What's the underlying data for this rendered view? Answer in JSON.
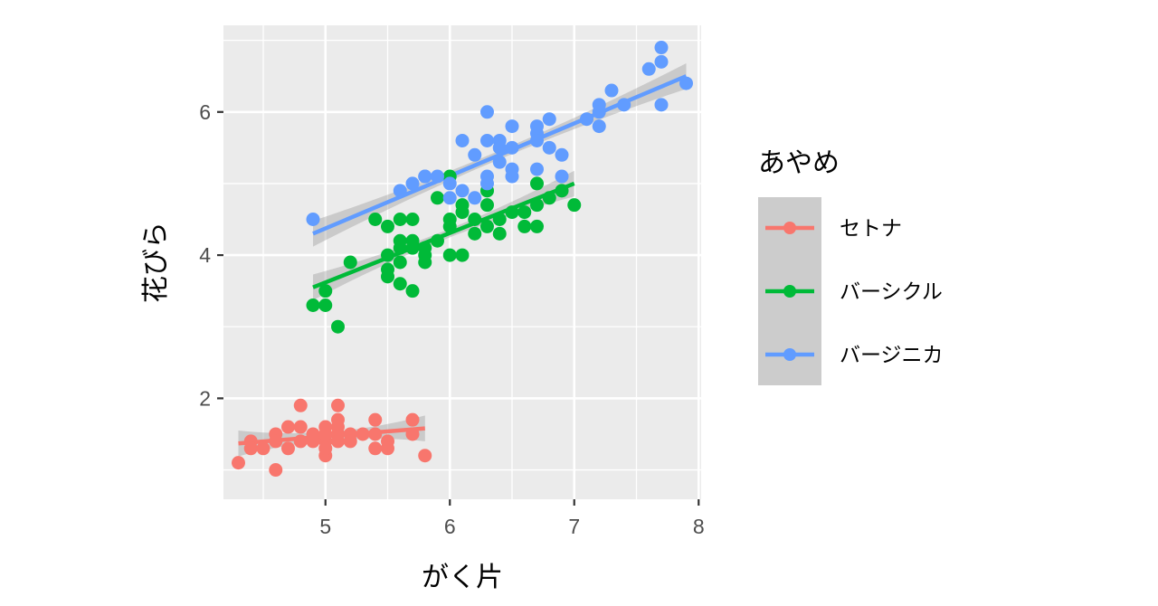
{
  "chart_data": {
    "type": "scatter",
    "xlabel": "がく片",
    "ylabel": "花びら",
    "xlim": [
      4.18,
      8.02
    ],
    "ylim": [
      0.59,
      7.21
    ],
    "xticks": [
      5,
      6,
      7,
      8
    ],
    "yticks": [
      2,
      4,
      6
    ],
    "grid": true,
    "legend": {
      "title": "あやめ",
      "position": "right"
    },
    "colors": {
      "panel": "#ebebeb",
      "grid": "#ffffff",
      "band": "#999999",
      "legend_key": "#cccccc"
    },
    "series": [
      {
        "name": "セトナ",
        "color": "#f8766d",
        "fit": {
          "x": [
            4.3,
            5.8
          ],
          "y": [
            1.37,
            1.58
          ]
        },
        "points": [
          [
            4.3,
            1.1
          ],
          [
            4.4,
            1.4
          ],
          [
            4.4,
            1.3
          ],
          [
            4.5,
            1.3
          ],
          [
            4.6,
            1.0
          ],
          [
            4.6,
            1.5
          ],
          [
            4.6,
            1.4
          ],
          [
            4.7,
            1.3
          ],
          [
            4.7,
            1.6
          ],
          [
            4.8,
            1.6
          ],
          [
            4.8,
            1.4
          ],
          [
            4.8,
            1.9
          ],
          [
            4.9,
            1.4
          ],
          [
            4.9,
            1.5
          ],
          [
            5.0,
            1.6
          ],
          [
            5.0,
            1.4
          ],
          [
            5.0,
            1.2
          ],
          [
            5.0,
            1.3
          ],
          [
            5.0,
            1.5
          ],
          [
            5.1,
            1.5
          ],
          [
            5.1,
            1.4
          ],
          [
            5.1,
            1.7
          ],
          [
            5.1,
            1.9
          ],
          [
            5.1,
            1.6
          ],
          [
            5.2,
            1.5
          ],
          [
            5.2,
            1.4
          ],
          [
            5.3,
            1.5
          ],
          [
            5.4,
            1.7
          ],
          [
            5.4,
            1.5
          ],
          [
            5.4,
            1.3
          ],
          [
            5.5,
            1.4
          ],
          [
            5.5,
            1.3
          ],
          [
            5.7,
            1.7
          ],
          [
            5.7,
            1.5
          ],
          [
            5.8,
            1.2
          ]
        ]
      },
      {
        "name": "バーシクル",
        "color": "#00ba38",
        "fit": {
          "x": [
            4.9,
            7.0
          ],
          "y": [
            3.55,
            5.0
          ]
        },
        "points": [
          [
            4.9,
            3.3
          ],
          [
            5.0,
            3.5
          ],
          [
            5.0,
            3.3
          ],
          [
            5.1,
            3.0
          ],
          [
            5.2,
            3.9
          ],
          [
            5.4,
            4.5
          ],
          [
            5.5,
            4.0
          ],
          [
            5.5,
            3.8
          ],
          [
            5.5,
            3.7
          ],
          [
            5.5,
            4.4
          ],
          [
            5.6,
            4.5
          ],
          [
            5.6,
            3.6
          ],
          [
            5.6,
            4.2
          ],
          [
            5.6,
            3.9
          ],
          [
            5.6,
            4.1
          ],
          [
            5.7,
            4.5
          ],
          [
            5.7,
            3.5
          ],
          [
            5.7,
            4.2
          ],
          [
            5.7,
            4.1
          ],
          [
            5.8,
            4.1
          ],
          [
            5.8,
            4.0
          ],
          [
            5.8,
            3.9
          ],
          [
            5.9,
            4.8
          ],
          [
            5.9,
            4.2
          ],
          [
            6.0,
            4.0
          ],
          [
            6.0,
            4.5
          ],
          [
            6.0,
            5.1
          ],
          [
            6.0,
            4.4
          ],
          [
            6.1,
            4.7
          ],
          [
            6.1,
            4.0
          ],
          [
            6.1,
            4.6
          ],
          [
            6.2,
            4.3
          ],
          [
            6.2,
            4.5
          ],
          [
            6.3,
            4.7
          ],
          [
            6.3,
            4.9
          ],
          [
            6.3,
            4.4
          ],
          [
            6.4,
            4.5
          ],
          [
            6.4,
            4.3
          ],
          [
            6.5,
            4.6
          ],
          [
            6.6,
            4.6
          ],
          [
            6.6,
            4.4
          ],
          [
            6.7,
            4.4
          ],
          [
            6.7,
            4.7
          ],
          [
            6.7,
            5.0
          ],
          [
            6.8,
            4.8
          ],
          [
            6.9,
            4.9
          ],
          [
            7.0,
            4.7
          ]
        ]
      },
      {
        "name": "バージニカ",
        "color": "#619cff",
        "fit": {
          "x": [
            4.9,
            7.9
          ],
          "y": [
            4.3,
            6.5
          ]
        },
        "points": [
          [
            4.9,
            4.5
          ],
          [
            5.6,
            4.9
          ],
          [
            5.7,
            5.0
          ],
          [
            5.8,
            5.1
          ],
          [
            5.8,
            5.1
          ],
          [
            5.9,
            5.1
          ],
          [
            6.0,
            4.8
          ],
          [
            6.0,
            5.0
          ],
          [
            6.1,
            5.6
          ],
          [
            6.1,
            4.9
          ],
          [
            6.2,
            4.8
          ],
          [
            6.2,
            5.4
          ],
          [
            6.3,
            6.0
          ],
          [
            6.3,
            5.6
          ],
          [
            6.3,
            5.1
          ],
          [
            6.3,
            5.0
          ],
          [
            6.4,
            5.3
          ],
          [
            6.4,
            5.6
          ],
          [
            6.4,
            5.5
          ],
          [
            6.5,
            5.8
          ],
          [
            6.5,
            5.5
          ],
          [
            6.5,
            5.2
          ],
          [
            6.5,
            5.1
          ],
          [
            6.7,
            5.7
          ],
          [
            6.7,
            5.8
          ],
          [
            6.7,
            5.6
          ],
          [
            6.7,
            5.2
          ],
          [
            6.8,
            5.5
          ],
          [
            6.8,
            5.9
          ],
          [
            6.9,
            5.1
          ],
          [
            6.9,
            5.4
          ],
          [
            7.1,
            5.9
          ],
          [
            7.2,
            6.1
          ],
          [
            7.2,
            6.0
          ],
          [
            7.2,
            5.8
          ],
          [
            7.3,
            6.3
          ],
          [
            7.4,
            6.1
          ],
          [
            7.6,
            6.6
          ],
          [
            7.7,
            6.9
          ],
          [
            7.7,
            6.7
          ],
          [
            7.7,
            6.1
          ],
          [
            7.9,
            6.4
          ]
        ]
      }
    ]
  }
}
